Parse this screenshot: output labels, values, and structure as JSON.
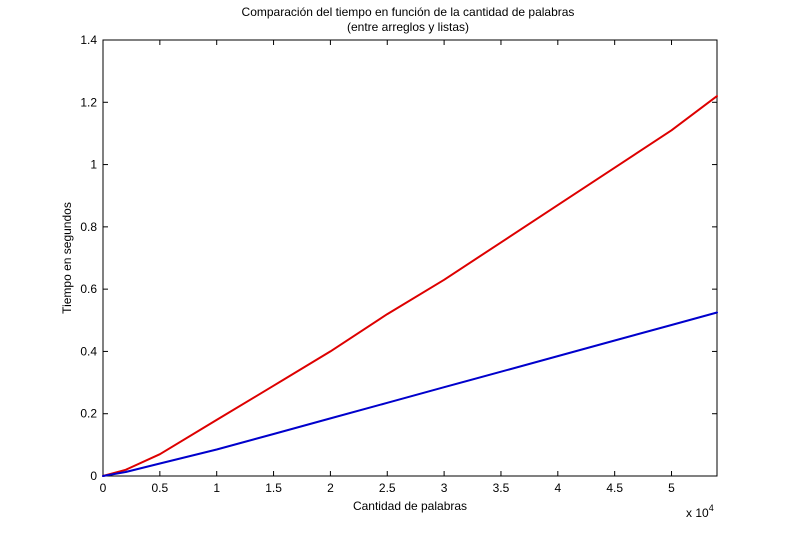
{
  "chart_data": {
    "type": "line",
    "title": "Comparación del tiempo en función de la cantidad de palabras",
    "subtitle": "(entre arreglos y listas)",
    "xlabel": "Cantidad de palabras",
    "ylabel": "Tiempo en segundos",
    "x_exponent_label": "x 10",
    "x_exponent_power": "4",
    "xlim": [
      0,
      54000
    ],
    "ylim": [
      0,
      1.4
    ],
    "grid": false,
    "x_ticks": [
      0,
      5000,
      10000,
      15000,
      20000,
      25000,
      30000,
      35000,
      40000,
      45000,
      50000
    ],
    "x_tick_labels": [
      "0",
      "0.5",
      "1",
      "1.5",
      "2",
      "2.5",
      "3",
      "3.5",
      "4",
      "4.5",
      "5"
    ],
    "y_ticks": [
      0,
      0.2,
      0.4,
      0.6,
      0.8,
      1.0,
      1.2,
      1.4
    ],
    "y_tick_labels": [
      "0",
      "0.2",
      "0.4",
      "0.6",
      "0.8",
      "1",
      "1.2",
      "1.4"
    ],
    "series": [
      {
        "color": "#dd0000",
        "x": [
          0,
          2000,
          5000,
          10000,
          15000,
          20000,
          25000,
          30000,
          35000,
          40000,
          45000,
          50000,
          54000
        ],
        "y": [
          0,
          0.02,
          0.07,
          0.18,
          0.29,
          0.4,
          0.52,
          0.63,
          0.75,
          0.87,
          0.99,
          1.11,
          1.22
        ]
      },
      {
        "color": "#0000cc",
        "x": [
          0,
          2000,
          5000,
          10000,
          15000,
          20000,
          25000,
          30000,
          35000,
          40000,
          45000,
          50000,
          54000
        ],
        "y": [
          0,
          0.013,
          0.04,
          0.085,
          0.135,
          0.185,
          0.235,
          0.285,
          0.335,
          0.385,
          0.435,
          0.485,
          0.525
        ]
      }
    ]
  }
}
